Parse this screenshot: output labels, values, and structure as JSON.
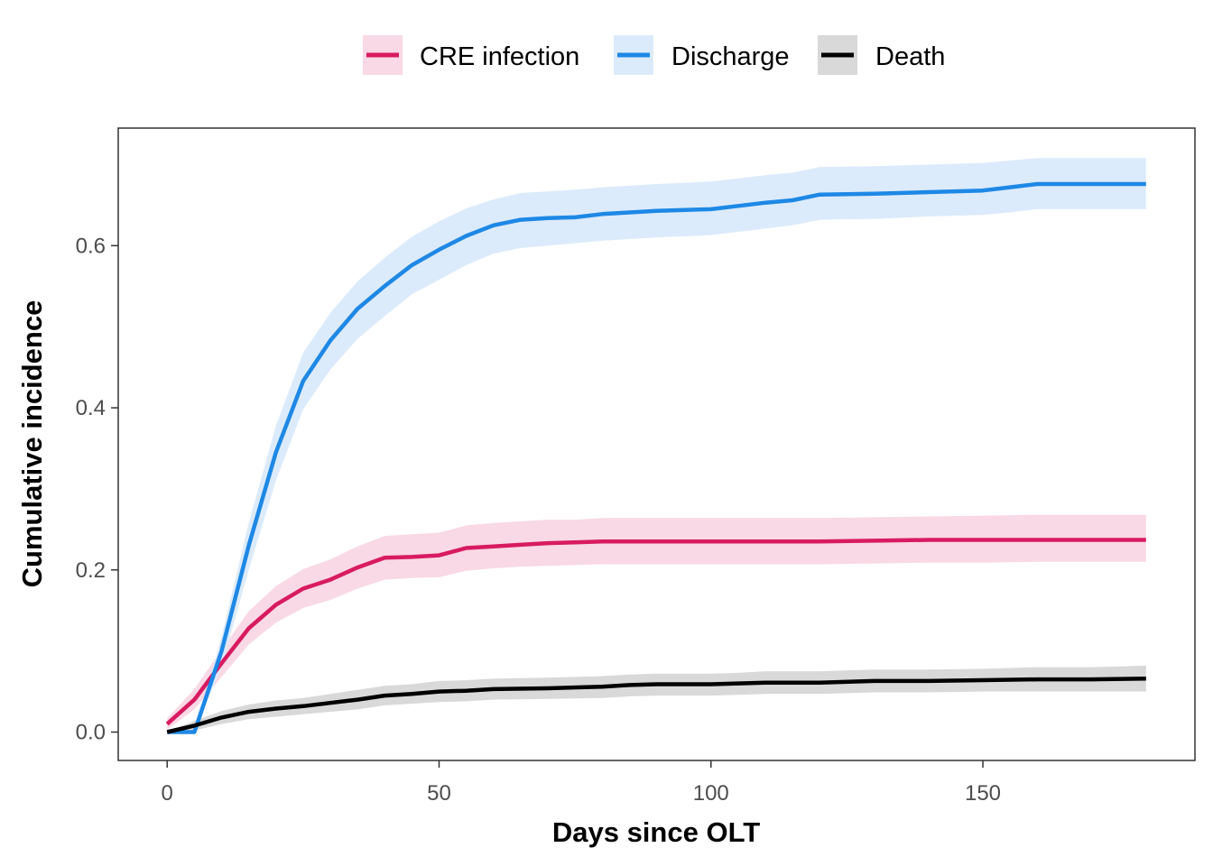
{
  "chart_data": {
    "type": "line",
    "title": "",
    "xlabel": "Days since OLT",
    "ylabel": "Cumulative incidence",
    "xlim": [
      -9,
      189
    ],
    "ylim": [
      -0.035,
      0.745
    ],
    "xticks": [
      0,
      50,
      100,
      150
    ],
    "yticks": [
      0.0,
      0.2,
      0.4,
      0.6
    ],
    "xtick_labels": [
      "0",
      "50",
      "100",
      "150"
    ],
    "ytick_labels": [
      "0.0",
      "0.2",
      "0.4",
      "0.6"
    ],
    "grid": false,
    "legend_position": "top",
    "series": [
      {
        "name": "CRE infection",
        "color": "#d81b60",
        "band_color": "#f8d9e5",
        "x": [
          0,
          5,
          10,
          15,
          20,
          25,
          30,
          35,
          40,
          45,
          50,
          55,
          60,
          65,
          70,
          75,
          80,
          90,
          100,
          110,
          120,
          130,
          140,
          150,
          160,
          170,
          180
        ],
        "y": [
          0.01,
          0.04,
          0.085,
          0.128,
          0.157,
          0.177,
          0.188,
          0.203,
          0.215,
          0.216,
          0.218,
          0.227,
          0.229,
          0.231,
          0.233,
          0.234,
          0.235,
          0.235,
          0.235,
          0.235,
          0.235,
          0.236,
          0.237,
          0.237,
          0.237,
          0.237,
          0.237
        ],
        "lower": [
          0.003,
          0.028,
          0.068,
          0.108,
          0.135,
          0.153,
          0.163,
          0.177,
          0.188,
          0.19,
          0.191,
          0.199,
          0.202,
          0.204,
          0.205,
          0.206,
          0.207,
          0.207,
          0.207,
          0.207,
          0.207,
          0.208,
          0.209,
          0.209,
          0.21,
          0.21,
          0.21
        ],
        "upper": [
          0.017,
          0.053,
          0.102,
          0.149,
          0.18,
          0.201,
          0.213,
          0.229,
          0.242,
          0.244,
          0.246,
          0.255,
          0.258,
          0.26,
          0.262,
          0.262,
          0.264,
          0.264,
          0.264,
          0.264,
          0.264,
          0.265,
          0.266,
          0.267,
          0.268,
          0.268,
          0.268
        ]
      },
      {
        "name": "Discharge",
        "color": "#1e88e5",
        "band_color": "#dcebfb",
        "x": [
          0,
          5,
          10,
          15,
          20,
          25,
          30,
          35,
          40,
          45,
          50,
          55,
          60,
          65,
          70,
          75,
          80,
          90,
          100,
          105,
          110,
          115,
          120,
          130,
          140,
          150,
          155,
          160,
          170,
          180
        ],
        "y": [
          0.0,
          0.0,
          0.1,
          0.23,
          0.345,
          0.433,
          0.483,
          0.522,
          0.55,
          0.576,
          0.595,
          0.612,
          0.625,
          0.632,
          0.634,
          0.635,
          0.639,
          0.643,
          0.645,
          0.649,
          0.653,
          0.656,
          0.663,
          0.664,
          0.666,
          0.668,
          0.672,
          0.676,
          0.676,
          0.676
        ],
        "lower": [
          0.0,
          0.0,
          0.08,
          0.2,
          0.31,
          0.398,
          0.447,
          0.485,
          0.513,
          0.54,
          0.558,
          0.576,
          0.59,
          0.597,
          0.6,
          0.603,
          0.606,
          0.61,
          0.613,
          0.617,
          0.621,
          0.625,
          0.632,
          0.633,
          0.636,
          0.638,
          0.641,
          0.645,
          0.645,
          0.645
        ],
        "upper": [
          0.0,
          0.0,
          0.118,
          0.258,
          0.378,
          0.468,
          0.517,
          0.556,
          0.585,
          0.611,
          0.63,
          0.646,
          0.657,
          0.665,
          0.667,
          0.669,
          0.672,
          0.676,
          0.679,
          0.683,
          0.687,
          0.69,
          0.697,
          0.698,
          0.7,
          0.702,
          0.705,
          0.708,
          0.708,
          0.708
        ]
      },
      {
        "name": "Death",
        "color": "#000000",
        "band_color": "#d9d9d9",
        "x": [
          0,
          5,
          10,
          15,
          20,
          25,
          30,
          35,
          40,
          45,
          50,
          55,
          60,
          70,
          80,
          85,
          90,
          100,
          105,
          110,
          120,
          130,
          135,
          140,
          150,
          160,
          170,
          180
        ],
        "y": [
          0.0,
          0.008,
          0.018,
          0.025,
          0.029,
          0.032,
          0.036,
          0.04,
          0.045,
          0.047,
          0.05,
          0.051,
          0.053,
          0.054,
          0.056,
          0.058,
          0.059,
          0.059,
          0.06,
          0.061,
          0.061,
          0.063,
          0.063,
          0.063,
          0.064,
          0.065,
          0.065,
          0.066
        ],
        "lower": [
          0.0,
          0.002,
          0.01,
          0.016,
          0.019,
          0.022,
          0.025,
          0.028,
          0.033,
          0.035,
          0.037,
          0.038,
          0.04,
          0.041,
          0.042,
          0.044,
          0.045,
          0.045,
          0.046,
          0.047,
          0.047,
          0.049,
          0.049,
          0.049,
          0.05,
          0.05,
          0.05,
          0.05
        ],
        "upper": [
          0.0,
          0.014,
          0.026,
          0.034,
          0.039,
          0.042,
          0.047,
          0.052,
          0.057,
          0.059,
          0.063,
          0.064,
          0.066,
          0.067,
          0.069,
          0.071,
          0.072,
          0.072,
          0.073,
          0.075,
          0.075,
          0.077,
          0.077,
          0.077,
          0.078,
          0.08,
          0.08,
          0.082
        ]
      }
    ]
  }
}
